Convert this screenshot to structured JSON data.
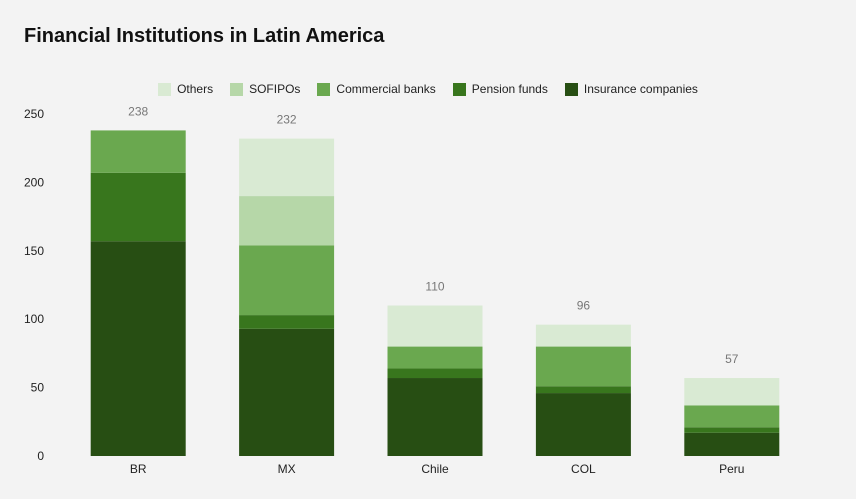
{
  "chart_data": {
    "type": "bar",
    "stacked": true,
    "title": "Financial Institutions in Latin America",
    "categories": [
      "BR",
      "MX",
      "Chile",
      "COL",
      "Peru"
    ],
    "series": [
      {
        "name": "Insurance companies",
        "color": "#274e13",
        "values": [
          157,
          93,
          57,
          46,
          17
        ]
      },
      {
        "name": "Pension funds",
        "color": "#38761d",
        "values": [
          50,
          10,
          7,
          5,
          4
        ]
      },
      {
        "name": "Commercial banks",
        "color": "#6aa84f",
        "values": [
          31,
          51,
          16,
          29,
          16
        ]
      },
      {
        "name": "SOFIPOs",
        "color": "#b6d7a8",
        "values": [
          0,
          36,
          0,
          0,
          0
        ]
      },
      {
        "name": "Others",
        "color": "#d9ead3",
        "values": [
          0,
          42,
          30,
          16,
          20
        ]
      }
    ],
    "totals": [
      "238",
      "232",
      "110",
      "96",
      "57"
    ],
    "legend_order": [
      "Others",
      "SOFIPOs",
      "Commercial banks",
      "Pension funds",
      "Insurance companies"
    ],
    "yticks": [
      0,
      50,
      100,
      150,
      200,
      250
    ],
    "ylim": [
      0,
      250
    ],
    "xlabel": "",
    "ylabel": "",
    "legend_position": "top-center",
    "grid": false
  }
}
